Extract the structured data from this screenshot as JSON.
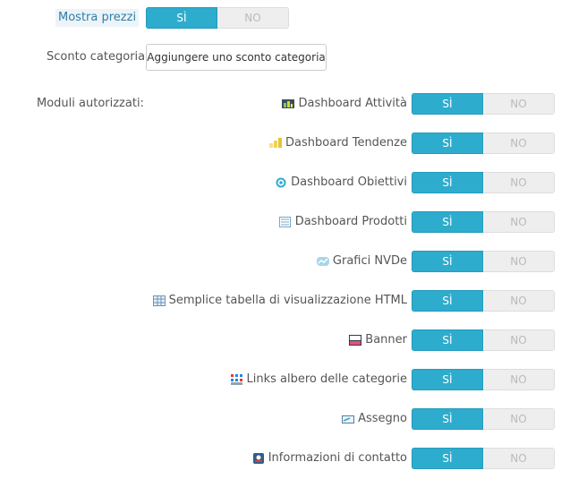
{
  "mostra_prezzi": {
    "label": "Mostra prezzi",
    "yes": "SÌ",
    "no": "NO",
    "value": "SÌ"
  },
  "sconto_categoria": {
    "label": "Sconto categoria",
    "button": "Aggiungere uno sconto categoria"
  },
  "moduli": {
    "label": "Moduli autorizzati:",
    "yes": "SÌ",
    "no": "NO",
    "items": [
      {
        "name": "Dashboard Attività",
        "icon": "dashboard-activity-icon",
        "value": "SÌ"
      },
      {
        "name": "Dashboard Tendenze",
        "icon": "dashboard-trends-icon",
        "value": "SÌ"
      },
      {
        "name": "Dashboard Obiettivi",
        "icon": "dashboard-goals-icon",
        "value": "SÌ"
      },
      {
        "name": "Dashboard Prodotti",
        "icon": "dashboard-products-icon",
        "value": "SÌ"
      },
      {
        "name": "Grafici NVDe",
        "icon": "nvd3-graph-icon",
        "value": "SÌ"
      },
      {
        "name": "Semplice tabella di visualizzazione HTML",
        "icon": "html-table-icon",
        "value": "SÌ"
      },
      {
        "name": "Banner",
        "icon": "banner-icon",
        "value": "SÌ"
      },
      {
        "name": "Links albero delle categorie",
        "icon": "category-tree-icon",
        "value": "SÌ"
      },
      {
        "name": "Assegno",
        "icon": "cheque-icon",
        "value": "SÌ"
      },
      {
        "name": "Informazioni di contatto",
        "icon": "contact-info-icon",
        "value": "SÌ"
      }
    ]
  },
  "colors": {
    "accent": "#2eacce",
    "off": "#eeeeee",
    "text": "#555555",
    "help_bg": "#edf4f8",
    "help_text": "#2f7ea8"
  }
}
